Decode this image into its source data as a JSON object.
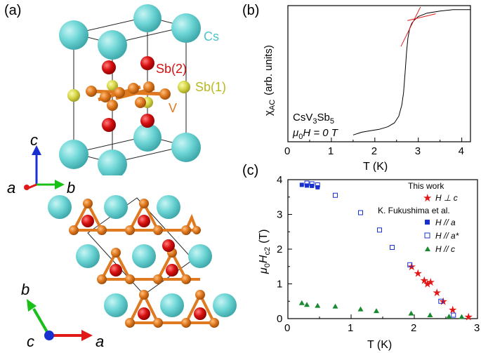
{
  "panels": {
    "a": {
      "label": "(a)",
      "atoms": {
        "cs": "Cs",
        "sb2": "Sb(2)",
        "sb1": "Sb(1)",
        "v": "V"
      },
      "axes_top": {
        "c": "c",
        "a": "a",
        "b": "b"
      },
      "axes_bottom": {
        "b": "b",
        "c": "c",
        "a": "a"
      },
      "colors": {
        "cs": "#6fd6d6",
        "sb2": "#d81010",
        "sb1": "#d8d84a",
        "v": "#e07a20",
        "axis_c": "#1830d0",
        "axis_a": "#e01818",
        "axis_b": "#18c018"
      }
    },
    "b": {
      "label": "(b)",
      "compound_prefix": "CsV",
      "compound_sub1": "3",
      "compound_mid": "Sb",
      "compound_sub2": "5",
      "field_mu": "μ",
      "field_sub": "0",
      "field_rest": "H = 0 T",
      "ylabel_main": "χ",
      "ylabel_sub": "AC",
      "ylabel_units": "(arb. units)",
      "xlabel": "T (K)",
      "xticks": [
        "0",
        "1",
        "2",
        "3",
        "4"
      ]
    },
    "c": {
      "label": "(c)",
      "xlabel": "T (K)",
      "ylabel_main": "μ",
      "ylabel_sub0": "0",
      "ylabel_H": "H",
      "ylabel_subc2": "c2",
      "ylabel_units": "(T)",
      "xticks": [
        "0",
        "1",
        "2",
        "3"
      ],
      "yticks": [
        "0",
        "1",
        "2",
        "3",
        "4"
      ],
      "legend": {
        "this_work": "This work",
        "h_perp_c": "H ⊥ c",
        "fukushima": "K. Fukushima et al.",
        "h_a": "H // a",
        "h_astar": "H // a*",
        "h_c": "H // c"
      }
    }
  },
  "chart_data": [
    {
      "type": "line",
      "title": "",
      "xlabel": "T (K)",
      "ylabel": "χAC (arb. units)",
      "xlim": [
        0,
        4.2
      ],
      "ylim": [
        0,
        1
      ],
      "series": [
        {
          "name": "χAC",
          "x": [
            1.5,
            1.7,
            1.9,
            2.1,
            2.3,
            2.45,
            2.55,
            2.62,
            2.66,
            2.7,
            2.73,
            2.76,
            2.8,
            2.85,
            2.9,
            3.0,
            3.2,
            3.5,
            3.8,
            4.2
          ],
          "y": [
            0.05,
            0.06,
            0.07,
            0.09,
            0.12,
            0.15,
            0.19,
            0.26,
            0.36,
            0.52,
            0.66,
            0.76,
            0.83,
            0.87,
            0.89,
            0.92,
            0.945,
            0.96,
            0.97,
            0.97
          ]
        }
      ]
    },
    {
      "type": "scatter",
      "title": "",
      "xlabel": "T (K)",
      "ylabel": "μ0Hc2 (T)",
      "xlim": [
        0,
        3
      ],
      "ylim": [
        0,
        4
      ],
      "series": [
        {
          "name": "This work H ⊥ c",
          "marker": "star",
          "color": "#e01818",
          "x": [
            1.95,
            2.05,
            2.15,
            2.2,
            2.25,
            2.35,
            2.45,
            2.6,
            2.85
          ],
          "y": [
            1.5,
            1.3,
            1.1,
            1.0,
            1.05,
            0.75,
            0.5,
            0.25,
            0.05
          ]
        },
        {
          "name": "H // a",
          "marker": "filled-square",
          "color": "#1830d0",
          "x": [
            0.22,
            0.3,
            0.38,
            0.47
          ],
          "y": [
            3.85,
            3.83,
            3.82,
            3.78
          ]
        },
        {
          "name": "H // a*",
          "marker": "open-square",
          "color": "#1830d0",
          "x": [
            0.3,
            0.38,
            0.47,
            0.75,
            1.15,
            1.45,
            1.65,
            1.93,
            2.42,
            2.62
          ],
          "y": [
            3.9,
            3.88,
            3.85,
            3.55,
            3.05,
            2.55,
            2.05,
            1.55,
            0.5,
            0.1
          ]
        },
        {
          "name": "H // c",
          "marker": "triangle",
          "color": "#1a8a30",
          "x": [
            0.22,
            0.3,
            0.47,
            0.75,
            1.15,
            1.4,
            1.95,
            2.25,
            2.55,
            2.75
          ],
          "y": [
            0.45,
            0.4,
            0.37,
            0.35,
            0.27,
            0.22,
            0.15,
            0.1,
            0.06,
            0.05
          ]
        }
      ]
    }
  ]
}
